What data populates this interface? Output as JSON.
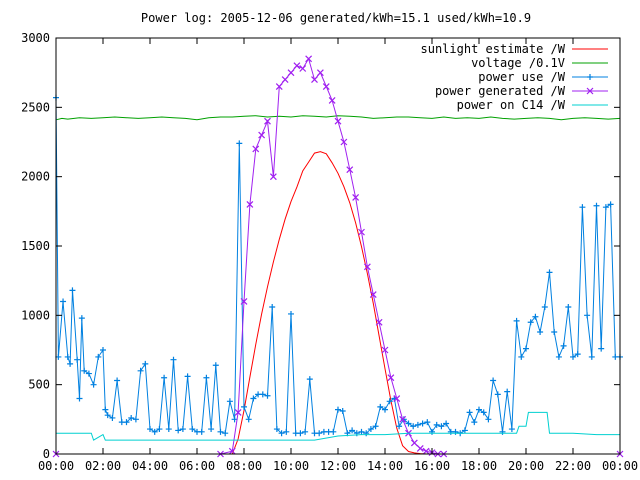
{
  "chart_data": {
    "type": "line",
    "title": "Power log: 2005-12-06 generated/kWh=15.1 used/kWh=10.9",
    "xlabel": "",
    "ylabel": "",
    "xlim": [
      0,
      24
    ],
    "ylim": [
      0,
      3000
    ],
    "x_ticks": [
      {
        "value": 0,
        "label": "00:00"
      },
      {
        "value": 2,
        "label": "02:00"
      },
      {
        "value": 4,
        "label": "04:00"
      },
      {
        "value": 6,
        "label": "06:00"
      },
      {
        "value": 8,
        "label": "08:00"
      },
      {
        "value": 10,
        "label": "10:00"
      },
      {
        "value": 12,
        "label": "12:00"
      },
      {
        "value": 14,
        "label": "14:00"
      },
      {
        "value": 16,
        "label": "16:00"
      },
      {
        "value": 18,
        "label": "18:00"
      },
      {
        "value": 20,
        "label": "20:00"
      },
      {
        "value": 22,
        "label": "22:00"
      },
      {
        "value": 24,
        "label": "00:00"
      }
    ],
    "y_ticks": [
      {
        "value": 0,
        "label": "0"
      },
      {
        "value": 500,
        "label": "500"
      },
      {
        "value": 1000,
        "label": "1000"
      },
      {
        "value": 1500,
        "label": "1500"
      },
      {
        "value": 2000,
        "label": "2000"
      },
      {
        "value": 2500,
        "label": "2500"
      },
      {
        "value": 3000,
        "label": "3000"
      }
    ],
    "grid": false,
    "legend_position": "top-right",
    "series": [
      {
        "name": "sunlight estimate /W",
        "color": "#ff0000",
        "style": "line",
        "x": [
          0,
          7.5,
          7.75,
          8,
          8.25,
          8.5,
          8.75,
          9,
          9.25,
          9.5,
          9.75,
          10,
          10.25,
          10.5,
          10.75,
          11,
          11.25,
          11.5,
          11.75,
          12,
          12.25,
          12.5,
          12.75,
          13,
          13.25,
          13.5,
          13.75,
          14,
          14.25,
          14.5,
          14.75,
          15,
          15.25,
          15.5,
          15.75,
          16,
          24
        ],
        "y": [
          0,
          0,
          108,
          314,
          555,
          792,
          1009,
          1206,
          1385,
          1548,
          1693,
          1820,
          1925,
          2042,
          2105,
          2170,
          2180,
          2165,
          2100,
          2024,
          1928,
          1811,
          1668,
          1496,
          1300,
          1085,
          852,
          615,
          385,
          185,
          60,
          18,
          8,
          3,
          1,
          0,
          0
        ]
      },
      {
        "name": "voltage /0.1V",
        "color": "#00a000",
        "style": "line",
        "x": [
          0,
          0.25,
          0.5,
          1,
          1.5,
          2,
          2.5,
          3,
          3.5,
          4,
          4.5,
          5,
          5.5,
          6,
          6.5,
          7,
          7.5,
          8,
          8.5,
          9,
          9.5,
          10,
          10.5,
          11,
          11.5,
          12,
          12.5,
          13,
          13.5,
          14,
          14.5,
          15,
          15.5,
          16,
          16.5,
          17,
          17.5,
          18,
          18.5,
          19,
          19.5,
          20,
          20.5,
          21,
          21.5,
          22,
          22.5,
          23,
          23.5,
          24
        ],
        "y": [
          2410,
          2420,
          2415,
          2425,
          2420,
          2425,
          2430,
          2425,
          2420,
          2425,
          2430,
          2425,
          2420,
          2410,
          2425,
          2430,
          2430,
          2435,
          2440,
          2430,
          2435,
          2430,
          2440,
          2435,
          2430,
          2440,
          2435,
          2430,
          2420,
          2425,
          2430,
          2430,
          2425,
          2420,
          2430,
          2420,
          2425,
          2420,
          2430,
          2420,
          2415,
          2420,
          2425,
          2420,
          2410,
          2420,
          2425,
          2420,
          2415,
          2420
        ]
      },
      {
        "name": "power use /W",
        "color": "#0080e0",
        "style": "linespoints-plus",
        "x": [
          0,
          0.1,
          0.3,
          0.5,
          0.6,
          0.7,
          0.9,
          1.0,
          1.1,
          1.2,
          1.4,
          1.6,
          1.8,
          2.0,
          2.1,
          2.2,
          2.4,
          2.6,
          2.8,
          3.0,
          3.2,
          3.4,
          3.6,
          3.8,
          4.0,
          4.2,
          4.4,
          4.6,
          4.8,
          5.0,
          5.2,
          5.4,
          5.6,
          5.8,
          6.0,
          6.2,
          6.4,
          6.6,
          6.8,
          7.0,
          7.2,
          7.4,
          7.6,
          7.8,
          8.0,
          8.2,
          8.4,
          8.6,
          8.8,
          9.0,
          9.2,
          9.4,
          9.6,
          9.8,
          10.0,
          10.2,
          10.4,
          10.6,
          10.8,
          11.0,
          11.2,
          11.4,
          11.6,
          11.8,
          12.0,
          12.2,
          12.4,
          12.6,
          12.8,
          13.0,
          13.2,
          13.4,
          13.6,
          13.8,
          14.0,
          14.2,
          14.4,
          14.6,
          14.8,
          15.0,
          15.2,
          15.4,
          15.6,
          15.8,
          16.0,
          16.2,
          16.4,
          16.6,
          16.8,
          17.0,
          17.2,
          17.4,
          17.6,
          17.8,
          18.0,
          18.2,
          18.4,
          18.6,
          18.8,
          19.0,
          19.2,
          19.4,
          19.6,
          19.8,
          20.0,
          20.2,
          20.4,
          20.6,
          20.8,
          21.0,
          21.2,
          21.4,
          21.6,
          21.8,
          22.0,
          22.2,
          22.4,
          22.6,
          22.8,
          23.0,
          23.2,
          23.4,
          23.6,
          23.8,
          24.0
        ],
        "y": [
          2570,
          700,
          1100,
          700,
          650,
          1180,
          680,
          400,
          980,
          600,
          580,
          500,
          700,
          750,
          320,
          280,
          260,
          530,
          230,
          230,
          260,
          250,
          600,
          650,
          180,
          160,
          180,
          550,
          180,
          680,
          170,
          180,
          560,
          180,
          160,
          160,
          550,
          180,
          640,
          160,
          150,
          380,
          250,
          2240,
          340,
          250,
          400,
          430,
          430,
          420,
          1060,
          180,
          150,
          160,
          1010,
          150,
          150,
          160,
          540,
          150,
          150,
          160,
          160,
          160,
          320,
          310,
          150,
          170,
          150,
          160,
          150,
          180,
          200,
          340,
          320,
          380,
          400,
          200,
          250,
          220,
          200,
          210,
          220,
          230,
          160,
          210,
          200,
          220,
          160,
          160,
          150,
          170,
          300,
          230,
          320,
          300,
          250,
          530,
          430,
          160,
          450,
          180,
          960,
          700,
          760,
          950,
          990,
          880,
          1060,
          1310,
          880,
          700,
          780,
          1060,
          700,
          720,
          1780,
          1000,
          700,
          1790,
          760,
          1780,
          1800,
          700,
          700
        ]
      },
      {
        "name": "power generated /W",
        "color": "#a020f0",
        "style": "linespoints-x",
        "x": [
          0,
          7.0,
          7.5,
          7.75,
          8.0,
          8.25,
          8.5,
          8.75,
          9.0,
          9.25,
          9.5,
          9.75,
          10.0,
          10.25,
          10.5,
          10.75,
          11.0,
          11.25,
          11.5,
          11.75,
          12.0,
          12.25,
          12.5,
          12.75,
          13.0,
          13.25,
          13.5,
          13.75,
          14.0,
          14.25,
          14.5,
          14.75,
          15.0,
          15.25,
          15.5,
          15.75,
          16.0,
          16.25,
          16.5,
          24
        ],
        "y": [
          0,
          0,
          20,
          300,
          1100,
          1800,
          2200,
          2300,
          2400,
          2000,
          2650,
          2700,
          2750,
          2800,
          2780,
          2850,
          2700,
          2750,
          2650,
          2550,
          2400,
          2250,
          2050,
          1850,
          1600,
          1350,
          1150,
          950,
          750,
          550,
          400,
          250,
          150,
          80,
          40,
          20,
          10,
          0,
          0,
          0
        ]
      },
      {
        "name": "power on C14 /W",
        "color": "#00d0d0",
        "style": "line",
        "x": [
          0,
          1.5,
          1.6,
          2.0,
          2.1,
          3.0,
          4.0,
          5.0,
          6.0,
          7.0,
          7.5,
          8.0,
          9.0,
          10.0,
          11.0,
          12.0,
          13.0,
          14.0,
          15.0,
          16.0,
          17.0,
          18.0,
          19.0,
          19.6,
          19.7,
          20.0,
          20.1,
          20.9,
          21.0,
          22.0,
          23.0,
          24.0
        ],
        "y": [
          150,
          150,
          100,
          140,
          100,
          100,
          100,
          100,
          100,
          100,
          100,
          100,
          100,
          100,
          100,
          130,
          140,
          140,
          150,
          150,
          150,
          150,
          150,
          150,
          200,
          200,
          300,
          300,
          150,
          150,
          140,
          140
        ]
      }
    ]
  }
}
